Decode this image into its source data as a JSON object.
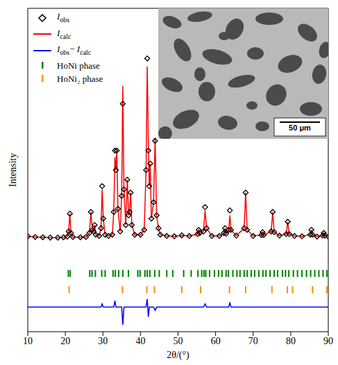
{
  "chart_data": {
    "type": "scatter",
    "x_label": "2θ/(°)",
    "y_label": "Intensity",
    "xlim": [
      10,
      90
    ],
    "xticks": [
      10,
      20,
      30,
      40,
      50,
      60,
      70,
      80,
      90
    ],
    "ylim": [
      0,
      100
    ],
    "tick_labels": "x",
    "legend": "upper left",
    "x": [
      10,
      12,
      14,
      16,
      18,
      19.5,
      20.5,
      20.9,
      21.2,
      21.5,
      22,
      24,
      25.5,
      26.4,
      26.8,
      27.2,
      27.5,
      27.8,
      28.1,
      29,
      29.5,
      29.8,
      30.1,
      30.6,
      31.5,
      32.5,
      32.9,
      33.2,
      33.45,
      33.7,
      34.0,
      34.6,
      35.0,
      35.3,
      35.6,
      36.1,
      36.5,
      36.85,
      37.1,
      37.4,
      37.7,
      38.5,
      40,
      41.0,
      41.5,
      41.8,
      42.1,
      42.35,
      42.6,
      42.9,
      43.5,
      43.9,
      44.3,
      44.8,
      45.3,
      47,
      49,
      51,
      53,
      55.2,
      55.5,
      55.8,
      56.8,
      57.2,
      57.6,
      59,
      61,
      62.2,
      62.5,
      62.8,
      63.5,
      63.8,
      64.1,
      65.5,
      67.6,
      68.0,
      68.4,
      70,
      72.2,
      72.5,
      72.8,
      74.8,
      75.2,
      75.6,
      77,
      78.8,
      79.2,
      79.6,
      81,
      83,
      85.2,
      85.5,
      85.8,
      87,
      88.5,
      88.8,
      89.1,
      90
    ],
    "series": [
      {
        "name": "Iobs",
        "type": "scatter",
        "marker": "diamond",
        "color": "#000000",
        "values": [
          29.5,
          29.3,
          29.2,
          29.1,
          29.1,
          29.2,
          29.4,
          31,
          36.5,
          30.5,
          29.3,
          29.2,
          29.3,
          30.5,
          37,
          31.5,
          31,
          33,
          30,
          29.6,
          32,
          45,
          35,
          30,
          29.6,
          30,
          37,
          56,
          50,
          56,
          38,
          31,
          42,
          70.5,
          44,
          33,
          47,
          36,
          37,
          43,
          33,
          30,
          30,
          31.5,
          50,
          84.5,
          56,
          45,
          52,
          35,
          40,
          59,
          36,
          32,
          30,
          29.6,
          29.5,
          29.8,
          29.6,
          30.2,
          31.5,
          30.5,
          31,
          38.5,
          32,
          29.6,
          29.6,
          30.5,
          32,
          30.3,
          31.5,
          37.5,
          31.5,
          29.7,
          32,
          43,
          31.5,
          29.6,
          29.9,
          30.8,
          29.9,
          31,
          37,
          30.8,
          29.7,
          30.2,
          34,
          30.2,
          29.6,
          29.5,
          30,
          31.5,
          30,
          29.4,
          29.7,
          30.5,
          29.7,
          29.4
        ]
      },
      {
        "name": "Icalc",
        "type": "line",
        "color": "#ff0000",
        "values": [
          29.5,
          29.3,
          29.2,
          29.1,
          29.1,
          29.2,
          29.4,
          31,
          36.5,
          30.5,
          29.3,
          29.2,
          29.3,
          30.5,
          37,
          31.5,
          31,
          33,
          30,
          29.6,
          32,
          44,
          35,
          30,
          29.6,
          30,
          37,
          54,
          50,
          56,
          38,
          31,
          42,
          76,
          44,
          33,
          47,
          36,
          37,
          43,
          33,
          30,
          30,
          31.5,
          50,
          82,
          59,
          45,
          52,
          35,
          40,
          60,
          36,
          32,
          30,
          29.6,
          29.5,
          29.8,
          29.6,
          30.2,
          31.5,
          30.5,
          31,
          37.5,
          32,
          29.6,
          29.6,
          30.5,
          32,
          30.3,
          31.5,
          36,
          31.5,
          29.7,
          32,
          43,
          31.5,
          29.6,
          29.9,
          30.8,
          29.9,
          31,
          37,
          30.8,
          29.7,
          30.2,
          34,
          30.2,
          29.6,
          29.5,
          30,
          31.5,
          30,
          29.4,
          29.7,
          30.5,
          29.7,
          29.4
        ]
      },
      {
        "name": "Iobs− Icalc",
        "type": "line",
        "color": "#0000ff",
        "values": [
          7.6,
          7.6,
          7.6,
          7.6,
          7.6,
          7.6,
          7.6,
          7.6,
          7.6,
          7.6,
          7.6,
          7.6,
          7.6,
          7.6,
          7.6,
          7.6,
          7.6,
          7.6,
          7.6,
          7.6,
          7.6,
          8.6,
          7.6,
          7.6,
          7.6,
          7.6,
          7.6,
          9.6,
          7.6,
          7.6,
          7.6,
          7.6,
          7.6,
          2.1,
          7.6,
          7.6,
          7.6,
          7.6,
          7.6,
          7.6,
          7.6,
          7.6,
          7.6,
          7.6,
          7.6,
          10.1,
          4.6,
          7.6,
          7.6,
          7.6,
          7.6,
          6.6,
          7.6,
          7.6,
          7.6,
          7.6,
          7.6,
          7.6,
          7.6,
          7.6,
          7.6,
          7.6,
          7.6,
          8.6,
          7.6,
          7.6,
          7.6,
          7.6,
          7.6,
          7.6,
          7.6,
          9.1,
          7.6,
          7.6,
          7.6,
          7.6,
          7.6,
          7.6,
          7.6,
          7.6,
          7.6,
          7.6,
          7.6,
          7.6,
          7.6,
          7.6,
          7.6,
          7.6,
          7.6,
          7.6,
          7.6,
          7.6,
          7.6,
          7.6,
          7.6,
          7.6,
          7.6,
          7.6
        ]
      },
      {
        "name": "HoNi phase",
        "type": "scatter",
        "marker": "|",
        "color": "#008000",
        "x": [
          20.8,
          21.3,
          26.5,
          27.1,
          28.0,
          29.7,
          30.6,
          32.7,
          33.3,
          34.2,
          35.3,
          36.8,
          39.3,
          39.9,
          41.2,
          41.8,
          42.5,
          43.8,
          45.0,
          47.0,
          48.6,
          51.5,
          53.5,
          55.3,
          56.3,
          56.9,
          57.4,
          58.4,
          59.7,
          60.8,
          61.7,
          62.8,
          63.4,
          64.6,
          65.7,
          66.5,
          67.6,
          68.4,
          69.5,
          70.4,
          71.5,
          72.6,
          73.4,
          74.5,
          75.6,
          76.5,
          77.8,
          78.6,
          79.5,
          80.7,
          81.8,
          83.0,
          84.2,
          85.3,
          86.4,
          87.5,
          88.6,
          89.6
        ],
        "values": [
          18,
          18,
          18,
          18,
          18,
          18,
          18,
          18,
          18,
          18,
          18,
          18,
          18,
          18,
          18,
          18,
          18,
          18,
          18,
          18,
          18,
          18,
          18,
          18,
          18,
          18,
          18,
          18,
          18,
          18,
          18,
          18,
          18,
          18,
          18,
          18,
          18,
          18,
          18,
          18,
          18,
          18,
          18,
          18,
          18,
          18,
          18,
          18,
          18,
          18,
          18,
          18,
          18,
          18,
          18,
          18,
          18,
          18
        ]
      },
      {
        "name": "HoNi₂ phase",
        "type": "scatter",
        "marker": "|",
        "color": "#ff8c00",
        "x": [
          21.0,
          35.2,
          41.7,
          43.7,
          51.0,
          56.0,
          63.7,
          68.0,
          75.0,
          79.1,
          80.5,
          85.8,
          89.6
        ],
        "values": [
          13,
          13,
          13,
          13,
          13,
          13,
          13,
          13,
          13,
          13,
          13,
          13,
          13
        ]
      }
    ],
    "inset": {
      "scale_bar": "50 μm"
    }
  }
}
